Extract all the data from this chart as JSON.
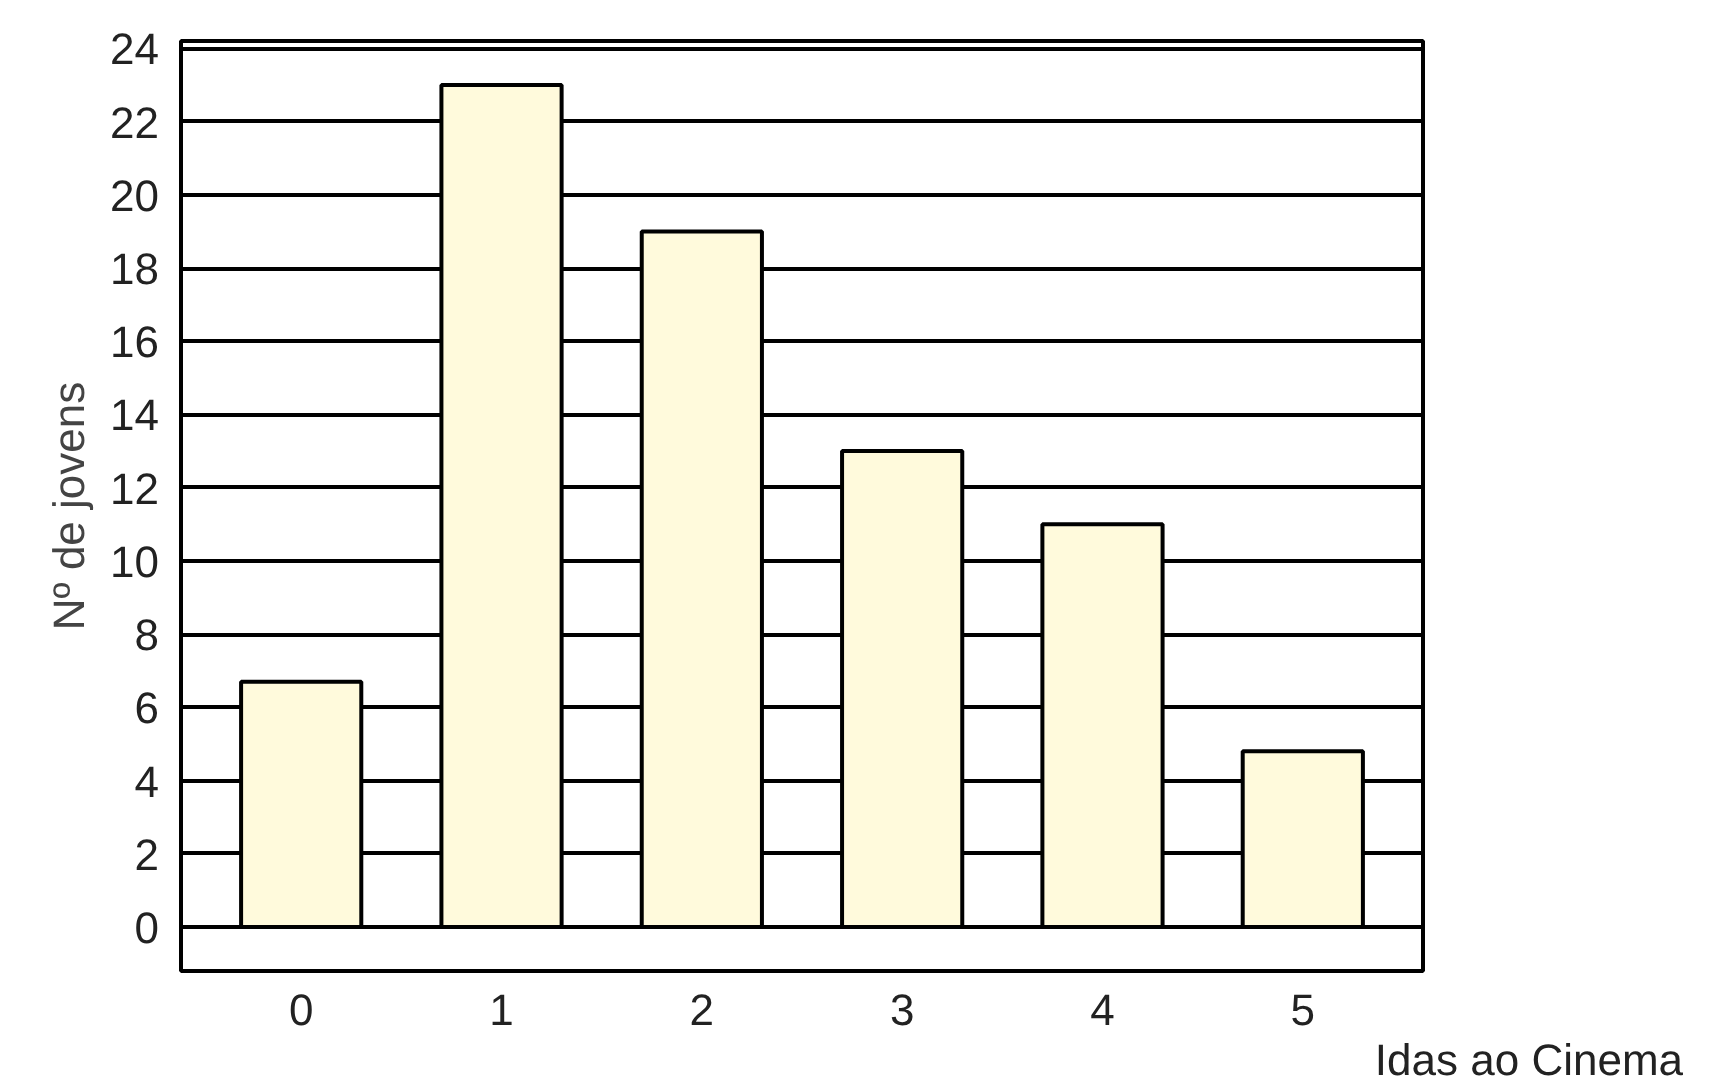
{
  "chart_data": {
    "type": "bar",
    "xlabel": "Idas ao Cinema",
    "ylabel": "Nº de jovens",
    "categories": [
      "0",
      "1",
      "2",
      "3",
      "4",
      "5"
    ],
    "values": [
      6.7,
      23,
      19,
      13,
      11,
      4.8
    ],
    "color": "#fffadc",
    "ylim": [
      -1.2,
      24.2
    ],
    "yticks": [
      0,
      2,
      4,
      6,
      8,
      10,
      12,
      14,
      16,
      18,
      20,
      22,
      24
    ],
    "grid": "y"
  }
}
